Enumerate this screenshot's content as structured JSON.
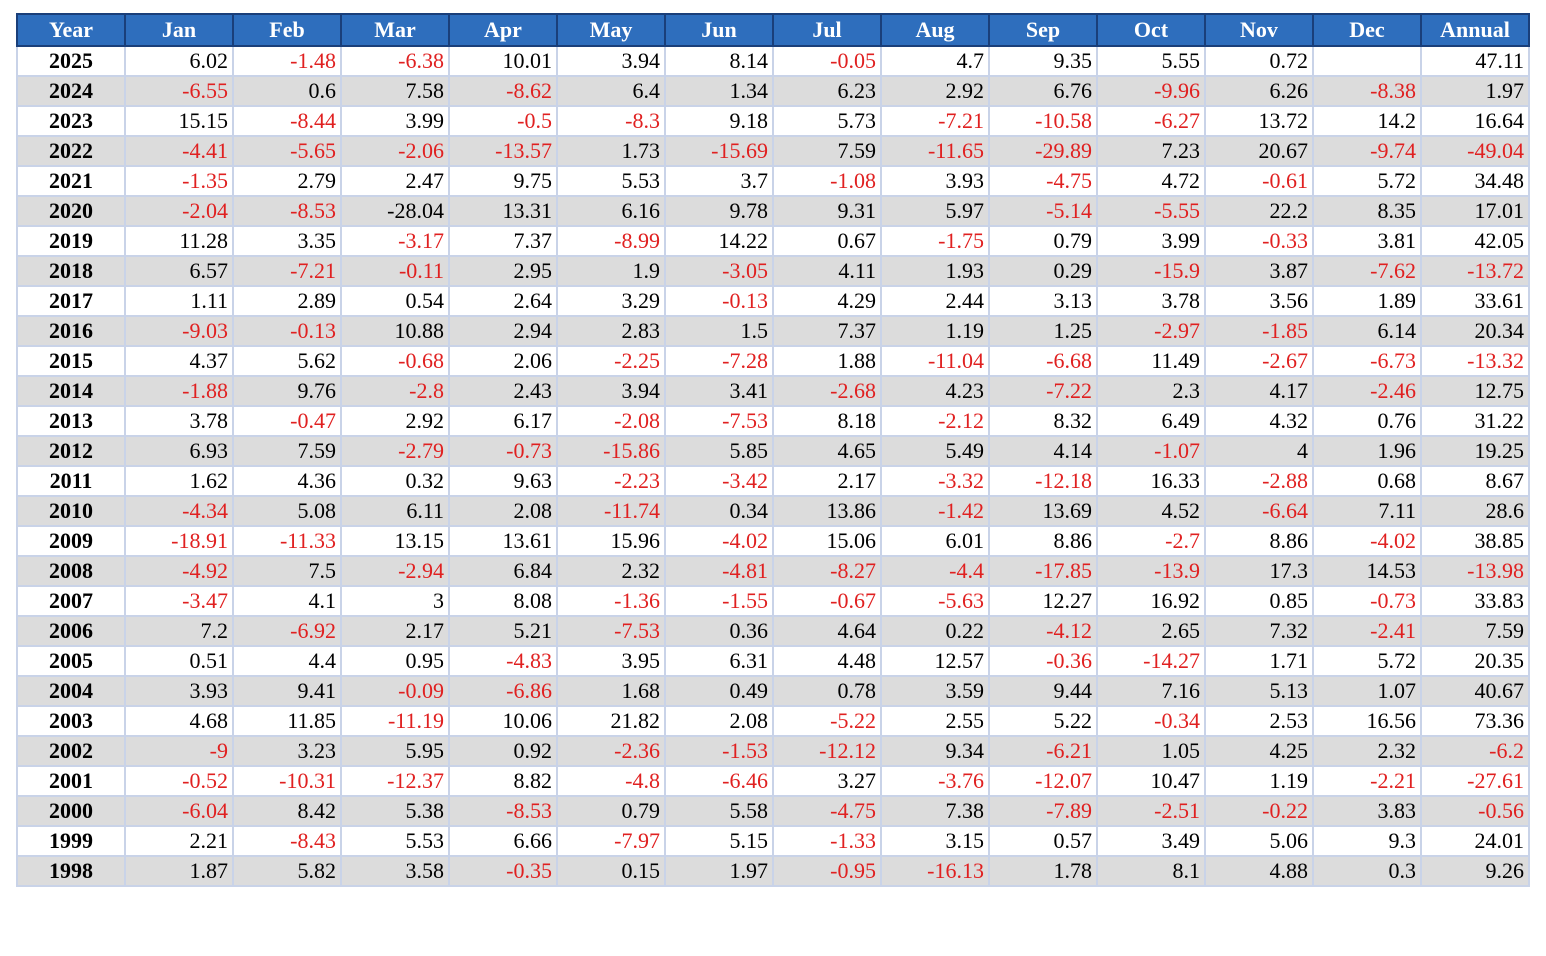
{
  "table": {
    "columns": [
      "Year",
      "Jan",
      "Feb",
      "Mar",
      "Apr",
      "May",
      "Jun",
      "Jul",
      "Aug",
      "Sep",
      "Oct",
      "Nov",
      "Dec",
      "Annual"
    ],
    "colors": {
      "header_bg": "#2e6ebd",
      "negative_text": "#e02020",
      "zebra_row_bg": "#dcdcdc"
    },
    "rows": [
      {
        "year": "2025",
        "values": [
          "6.02",
          "-1.48",
          "-6.38",
          "10.01",
          "3.94",
          "8.14",
          "-0.05",
          "4.7",
          "9.35",
          "5.55",
          "0.72",
          "",
          "47.11"
        ]
      },
      {
        "year": "2024",
        "values": [
          "-6.55",
          "0.6",
          "7.58",
          "-8.62",
          "6.4",
          "1.34",
          "6.23",
          "2.92",
          "6.76",
          "-9.96",
          "6.26",
          "-8.38",
          "1.97"
        ]
      },
      {
        "year": "2023",
        "values": [
          "15.15",
          "-8.44",
          "3.99",
          "-0.5",
          "-8.3",
          "9.18",
          "5.73",
          "-7.21",
          "-10.58",
          "-6.27",
          "13.72",
          "14.2",
          "16.64"
        ]
      },
      {
        "year": "2022",
        "values": [
          "-4.41",
          "-5.65",
          "-2.06",
          "-13.57",
          "1.73",
          "-15.69",
          "7.59",
          "-11.65",
          "-29.89",
          "7.23",
          "20.67",
          "-9.74",
          "-49.04"
        ]
      },
      {
        "year": "2021",
        "values": [
          "-1.35",
          "2.79",
          "2.47",
          "9.75",
          "5.53",
          "3.7",
          "-1.08",
          "3.93",
          "-4.75",
          "4.72",
          "-0.61",
          "5.72",
          "34.48"
        ]
      },
      {
        "year": "2020",
        "values": [
          "-2.04",
          "-8.53",
          "-28.04",
          "13.31",
          "6.16",
          "9.78",
          "9.31",
          "5.97",
          "-5.14",
          "-5.55",
          "22.2",
          "8.35",
          "17.01"
        ],
        "black_negatives": [
          2
        ]
      },
      {
        "year": "2019",
        "values": [
          "11.28",
          "3.35",
          "-3.17",
          "7.37",
          "-8.99",
          "14.22",
          "0.67",
          "-1.75",
          "0.79",
          "3.99",
          "-0.33",
          "3.81",
          "42.05"
        ]
      },
      {
        "year": "2018",
        "values": [
          "6.57",
          "-7.21",
          "-0.11",
          "2.95",
          "1.9",
          "-3.05",
          "4.11",
          "1.93",
          "0.29",
          "-15.9",
          "3.87",
          "-7.62",
          "-13.72"
        ]
      },
      {
        "year": "2017",
        "values": [
          "1.11",
          "2.89",
          "0.54",
          "2.64",
          "3.29",
          "-0.13",
          "4.29",
          "2.44",
          "3.13",
          "3.78",
          "3.56",
          "1.89",
          "33.61"
        ]
      },
      {
        "year": "2016",
        "values": [
          "-9.03",
          "-0.13",
          "10.88",
          "2.94",
          "2.83",
          "1.5",
          "7.37",
          "1.19",
          "1.25",
          "-2.97",
          "-1.85",
          "6.14",
          "20.34"
        ]
      },
      {
        "year": "2015",
        "values": [
          "4.37",
          "5.62",
          "-0.68",
          "2.06",
          "-2.25",
          "-7.28",
          "1.88",
          "-11.04",
          "-6.68",
          "11.49",
          "-2.67",
          "-6.73",
          "-13.32"
        ]
      },
      {
        "year": "2014",
        "values": [
          "-1.88",
          "9.76",
          "-2.8",
          "2.43",
          "3.94",
          "3.41",
          "-2.68",
          "4.23",
          "-7.22",
          "2.3",
          "4.17",
          "-2.46",
          "12.75"
        ]
      },
      {
        "year": "2013",
        "values": [
          "3.78",
          "-0.47",
          "2.92",
          "6.17",
          "-2.08",
          "-7.53",
          "8.18",
          "-2.12",
          "8.32",
          "6.49",
          "4.32",
          "0.76",
          "31.22"
        ]
      },
      {
        "year": "2012",
        "values": [
          "6.93",
          "7.59",
          "-2.79",
          "-0.73",
          "-15.86",
          "5.85",
          "4.65",
          "5.49",
          "4.14",
          "-1.07",
          "4",
          "1.96",
          "19.25"
        ]
      },
      {
        "year": "2011",
        "values": [
          "1.62",
          "4.36",
          "0.32",
          "9.63",
          "-2.23",
          "-3.42",
          "2.17",
          "-3.32",
          "-12.18",
          "16.33",
          "-2.88",
          "0.68",
          "8.67"
        ]
      },
      {
        "year": "2010",
        "values": [
          "-4.34",
          "5.08",
          "6.11",
          "2.08",
          "-11.74",
          "0.34",
          "13.86",
          "-1.42",
          "13.69",
          "4.52",
          "-6.64",
          "7.11",
          "28.6"
        ]
      },
      {
        "year": "2009",
        "values": [
          "-18.91",
          "-11.33",
          "13.15",
          "13.61",
          "15.96",
          "-4.02",
          "15.06",
          "6.01",
          "8.86",
          "-2.7",
          "8.86",
          "-4.02",
          "38.85"
        ]
      },
      {
        "year": "2008",
        "values": [
          "-4.92",
          "7.5",
          "-2.94",
          "6.84",
          "2.32",
          "-4.81",
          "-8.27",
          "-4.4",
          "-17.85",
          "-13.9",
          "17.3",
          "14.53",
          "-13.98"
        ]
      },
      {
        "year": "2007",
        "values": [
          "-3.47",
          "4.1",
          "3",
          "8.08",
          "-1.36",
          "-1.55",
          "-0.67",
          "-5.63",
          "12.27",
          "16.92",
          "0.85",
          "-0.73",
          "33.83"
        ]
      },
      {
        "year": "2006",
        "values": [
          "7.2",
          "-6.92",
          "2.17",
          "5.21",
          "-7.53",
          "0.36",
          "4.64",
          "0.22",
          "-4.12",
          "2.65",
          "7.32",
          "-2.41",
          "7.59"
        ]
      },
      {
        "year": "2005",
        "values": [
          "0.51",
          "4.4",
          "0.95",
          "-4.83",
          "3.95",
          "6.31",
          "4.48",
          "12.57",
          "-0.36",
          "-14.27",
          "1.71",
          "5.72",
          "20.35"
        ]
      },
      {
        "year": "2004",
        "values": [
          "3.93",
          "9.41",
          "-0.09",
          "-6.86",
          "1.68",
          "0.49",
          "0.78",
          "3.59",
          "9.44",
          "7.16",
          "5.13",
          "1.07",
          "40.67"
        ]
      },
      {
        "year": "2003",
        "values": [
          "4.68",
          "11.85",
          "-11.19",
          "10.06",
          "21.82",
          "2.08",
          "-5.22",
          "2.55",
          "5.22",
          "-0.34",
          "2.53",
          "16.56",
          "73.36"
        ]
      },
      {
        "year": "2002",
        "values": [
          "-9",
          "3.23",
          "5.95",
          "0.92",
          "-2.36",
          "-1.53",
          "-12.12",
          "9.34",
          "-6.21",
          "1.05",
          "4.25",
          "2.32",
          "-6.2"
        ]
      },
      {
        "year": "2001",
        "values": [
          "-0.52",
          "-10.31",
          "-12.37",
          "8.82",
          "-4.8",
          "-6.46",
          "3.27",
          "-3.76",
          "-12.07",
          "10.47",
          "1.19",
          "-2.21",
          "-27.61"
        ]
      },
      {
        "year": "2000",
        "values": [
          "-6.04",
          "8.42",
          "5.38",
          "-8.53",
          "0.79",
          "5.58",
          "-4.75",
          "7.38",
          "-7.89",
          "-2.51",
          "-0.22",
          "3.83",
          "-0.56"
        ]
      },
      {
        "year": "1999",
        "values": [
          "2.21",
          "-8.43",
          "5.53",
          "6.66",
          "-7.97",
          "5.15",
          "-1.33",
          "3.15",
          "0.57",
          "3.49",
          "5.06",
          "9.3",
          "24.01"
        ]
      },
      {
        "year": "1998",
        "values": [
          "1.87",
          "5.82",
          "3.58",
          "-0.35",
          "0.15",
          "1.97",
          "-0.95",
          "-16.13",
          "1.78",
          "8.1",
          "4.88",
          "0.3",
          "9.26"
        ]
      }
    ]
  }
}
